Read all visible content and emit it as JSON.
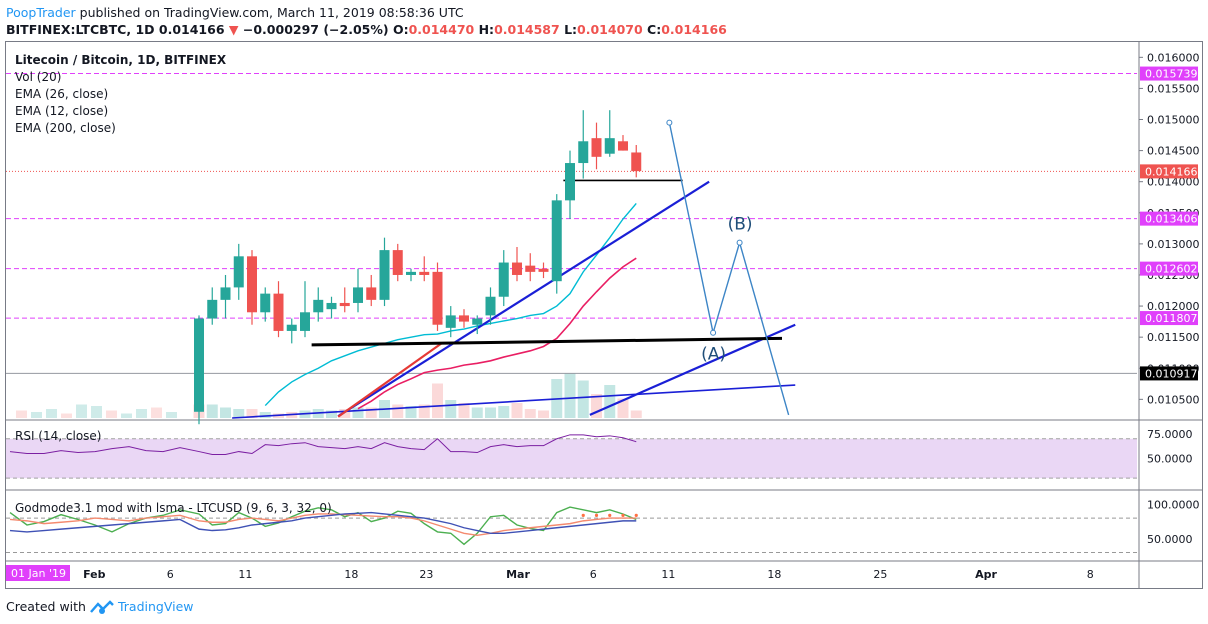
{
  "header": {
    "author": "PoopTrader",
    "published_text": "published on TradingView.com, March 11, 2019 08:58:36 UTC",
    "symbol_line": "BITFINEX:LTCBTC, 1D",
    "last_price": "0.014166",
    "change_arrow": "▼",
    "change": "−0.000297 (−2.05%)",
    "o_label": "O:",
    "o_value": "0.014470",
    "h_label": "H:",
    "h_value": "0.014587",
    "l_label": "L:",
    "l_value": "0.014070",
    "c_label": "C:",
    "c_value": "0.014166"
  },
  "legend": {
    "title": "Litecoin / Bitcoin, 1D, BITFINEX",
    "vol": "Vol (20)",
    "ema26": "EMA (26, close)",
    "ema12": "EMA (12, close)",
    "ema200": "EMA (200, close)",
    "rsi": "RSI (14, close)",
    "godmode": "Godmode3.1 mod with lsma - LTCUSD (9, 6, 3, 32, 0)"
  },
  "footer": {
    "created_with": "Created with",
    "brand": "TradingView"
  },
  "colors": {
    "up": "#26a69a",
    "down": "#ef5350",
    "ema_cyan": "#00bcd4",
    "ema_magenta": "#e91e63",
    "trend_blue": "#1a1fd6",
    "wave_blue": "#3d85c6",
    "magenta_level": "#e040fb",
    "rsi_line": "#7b1fa2",
    "rsi_band": "#ead7f5",
    "god_green": "#4caf50",
    "god_blue": "#3f51b5",
    "god_salmon": "#f48a6f"
  },
  "chart_data": [
    {
      "type": "candlestick",
      "title": "Litecoin / Bitcoin, 1D, BITFINEX",
      "ylim": [
        0.0102,
        0.01615
      ],
      "y_ticks": [
        "0.016000",
        "0.015500",
        "0.015000",
        "0.014500",
        "0.014000",
        "0.013500",
        "0.013000",
        "0.012500",
        "0.012000",
        "0.011500",
        "0.011000",
        "0.010500"
      ],
      "x_ticks": [
        "01 Jan '19",
        "Feb",
        "6",
        "11",
        "18",
        "23",
        "Mar",
        "6",
        "11",
        "18",
        "25",
        "Apr",
        "8"
      ],
      "price_labels": [
        {
          "value": 0.015739,
          "label": "0.015739",
          "style": "magenta"
        },
        {
          "value": 0.014166,
          "label": "0.014166",
          "style": "red"
        },
        {
          "value": 0.013406,
          "label": "0.013406",
          "style": "magenta"
        },
        {
          "value": 0.012602,
          "label": "0.012602",
          "style": "magenta"
        },
        {
          "value": 0.011807,
          "label": "0.011807",
          "style": "magenta"
        },
        {
          "value": 0.010917,
          "label": "0.010917",
          "style": "black"
        }
      ],
      "candles": [
        {
          "o": 0.0103,
          "h": 0.01185,
          "l": 0.0101,
          "c": 0.0118
        },
        {
          "o": 0.0118,
          "h": 0.0123,
          "l": 0.0117,
          "c": 0.0121
        },
        {
          "o": 0.0121,
          "h": 0.0125,
          "l": 0.0118,
          "c": 0.0123
        },
        {
          "o": 0.0123,
          "h": 0.013,
          "l": 0.0121,
          "c": 0.0128
        },
        {
          "o": 0.0128,
          "h": 0.0129,
          "l": 0.0117,
          "c": 0.0119
        },
        {
          "o": 0.0119,
          "h": 0.0123,
          "l": 0.01175,
          "c": 0.0122
        },
        {
          "o": 0.0122,
          "h": 0.0124,
          "l": 0.0115,
          "c": 0.0116
        },
        {
          "o": 0.0116,
          "h": 0.0118,
          "l": 0.0114,
          "c": 0.0117
        },
        {
          "o": 0.0116,
          "h": 0.0124,
          "l": 0.0115,
          "c": 0.0119
        },
        {
          "o": 0.0119,
          "h": 0.0123,
          "l": 0.01175,
          "c": 0.0121
        },
        {
          "o": 0.01195,
          "h": 0.01215,
          "l": 0.0118,
          "c": 0.01205
        },
        {
          "o": 0.01205,
          "h": 0.0123,
          "l": 0.0119,
          "c": 0.012
        },
        {
          "o": 0.01205,
          "h": 0.0126,
          "l": 0.0119,
          "c": 0.0123
        },
        {
          "o": 0.0123,
          "h": 0.0125,
          "l": 0.012,
          "c": 0.0121
        },
        {
          "o": 0.0121,
          "h": 0.0131,
          "l": 0.012,
          "c": 0.0129
        },
        {
          "o": 0.0129,
          "h": 0.013,
          "l": 0.0124,
          "c": 0.0125
        },
        {
          "o": 0.0125,
          "h": 0.0126,
          "l": 0.0124,
          "c": 0.01255
        },
        {
          "o": 0.01255,
          "h": 0.0128,
          "l": 0.0124,
          "c": 0.0125
        },
        {
          "o": 0.01255,
          "h": 0.0127,
          "l": 0.0116,
          "c": 0.0117
        },
        {
          "o": 0.01165,
          "h": 0.012,
          "l": 0.0115,
          "c": 0.01185
        },
        {
          "o": 0.01185,
          "h": 0.01195,
          "l": 0.01165,
          "c": 0.01175
        },
        {
          "o": 0.0117,
          "h": 0.01185,
          "l": 0.01155,
          "c": 0.0118
        },
        {
          "o": 0.01185,
          "h": 0.0123,
          "l": 0.0117,
          "c": 0.01215
        },
        {
          "o": 0.01215,
          "h": 0.0129,
          "l": 0.012,
          "c": 0.0127
        },
        {
          "o": 0.0127,
          "h": 0.01295,
          "l": 0.0124,
          "c": 0.0125
        },
        {
          "o": 0.01265,
          "h": 0.01285,
          "l": 0.0124,
          "c": 0.01255
        },
        {
          "o": 0.0126,
          "h": 0.0127,
          "l": 0.01245,
          "c": 0.01255
        },
        {
          "o": 0.0124,
          "h": 0.0138,
          "l": 0.0122,
          "c": 0.0137
        },
        {
          "o": 0.0137,
          "h": 0.0145,
          "l": 0.0134,
          "c": 0.0143
        },
        {
          "o": 0.0143,
          "h": 0.01515,
          "l": 0.01405,
          "c": 0.01465
        },
        {
          "o": 0.0147,
          "h": 0.01495,
          "l": 0.0142,
          "c": 0.0144
        },
        {
          "o": 0.01445,
          "h": 0.01515,
          "l": 0.0144,
          "c": 0.0147
        },
        {
          "o": 0.01465,
          "h": 0.01475,
          "l": 0.0145,
          "c": 0.0145
        },
        {
          "o": 0.01447,
          "h": 0.01459,
          "l": 0.01407,
          "c": 0.01417
        }
      ],
      "volume_up": [
        false,
        true,
        true,
        true,
        false,
        true,
        false,
        false,
        true,
        true,
        true,
        false,
        true,
        false,
        true,
        false,
        true,
        false,
        false,
        true,
        false,
        true,
        true,
        true,
        false,
        false,
        false,
        true,
        true,
        true,
        false,
        true,
        false,
        false
      ],
      "volume": [
        0.9,
        0.9,
        0.7,
        0.6,
        0.6,
        0.4,
        0.3,
        0.4,
        0.5,
        0.6,
        0.5,
        0.6,
        0.7,
        0.7,
        1.2,
        0.9,
        0.8,
        0.9,
        2.3,
        1.2,
        1.0,
        0.7,
        0.7,
        0.8,
        1.0,
        0.6,
        0.5,
        2.6,
        3.0,
        2.5,
        1.6,
        2.2,
        1.3,
        0.5
      ],
      "ema_cyan": [
        null,
        null,
        null,
        null,
        null,
        0.0104,
        0.01062,
        0.01078,
        0.0109,
        0.011,
        0.01112,
        0.0112,
        0.01128,
        0.01134,
        0.0114,
        0.01146,
        0.0115,
        0.01154,
        0.01155,
        0.0116,
        0.01163,
        0.01168,
        0.01172,
        0.01176,
        0.0118,
        0.01185,
        0.01188,
        0.012,
        0.0122,
        0.01255,
        0.01282,
        0.0131,
        0.0134,
        0.01365
      ],
      "ema_magenta": [
        null,
        null,
        null,
        null,
        null,
        null,
        null,
        null,
        null,
        null,
        null,
        null,
        0.01035,
        0.01047,
        0.01062,
        0.01074,
        0.01083,
        0.01093,
        0.01097,
        0.011,
        0.01105,
        0.01108,
        0.01112,
        0.01118,
        0.01123,
        0.01128,
        0.01135,
        0.01148,
        0.01172,
        0.012,
        0.01223,
        0.01245,
        0.01263,
        0.01277
      ],
      "level_lines": [
        0.015739,
        0.013406,
        0.012602,
        0.011807
      ],
      "horizontal_black": {
        "from_day": 27.5,
        "to_day": 36.5,
        "value": 0.01402
      },
      "neckline": {
        "from_day": 8.5,
        "value_from": 0.011375,
        "to_day": 44,
        "value_to": 0.01148
      },
      "trendline_upper": {
        "from_day": 10.5,
        "value_from": 0.01023,
        "to_day": 38.5,
        "value_to": 0.014
      },
      "trendline_lower": {
        "from_day": 29.5,
        "value_from": 0.01025,
        "to_day": 45,
        "value_to": 0.0117
      },
      "trendline_base": {
        "from_day": 2.5,
        "value_from": 0.0102,
        "to_day": 45,
        "value_to": 0.01073
      },
      "red_segment": {
        "from_day": 10.5,
        "value_from": 0.01022,
        "to_day": 18.3,
        "value_to": 0.0114
      },
      "wave": [
        {
          "day": 35.5,
          "value": 0.01495
        },
        {
          "day": 38.8,
          "value": 0.01157
        },
        {
          "day": 40.8,
          "value": 0.01302
        },
        {
          "day": 44.5,
          "value": 0.01025
        }
      ],
      "wave_labels": [
        {
          "text": "(A)",
          "day": 38.8,
          "value": 0.0113
        },
        {
          "text": "(B)",
          "day": 40.8,
          "value": 0.0132
        }
      ]
    },
    {
      "type": "line",
      "title": "RSI (14, close)",
      "y_ticks": [
        "75.0000",
        "50.0000"
      ],
      "band": [
        30,
        70
      ],
      "values": [
        57,
        54,
        54,
        57,
        55,
        64,
        63,
        65,
        66,
        62,
        61,
        60,
        62,
        60,
        66,
        62,
        60,
        59,
        70,
        57,
        57,
        56,
        62,
        64,
        62,
        63,
        63,
        70,
        74,
        74,
        72,
        73,
        71,
        67
      ]
    },
    {
      "type": "line",
      "title": "Godmode3.1 mod with lsma - LTCUSD (9, 6, 3, 32, 0)",
      "y_ticks": [
        "100.0000",
        "50.0000"
      ],
      "series": [
        {
          "values": [
            86,
            70,
            72,
            88,
            80,
            68,
            73,
            82,
            90,
            95,
            92,
            82,
            88,
            75,
            80,
            90,
            87,
            72,
            60,
            58,
            42,
            58,
            82,
            84,
            70,
            65,
            62,
            88,
            96,
            92,
            88,
            92,
            86,
            78
          ]
        },
        {
          "values": [
            76,
            74,
            74,
            78,
            80,
            78,
            76,
            80,
            84,
            86,
            86,
            85,
            84,
            83,
            82,
            82,
            80,
            76,
            70,
            64,
            58,
            55,
            58,
            62,
            64,
            66,
            68,
            70,
            72,
            76,
            78,
            80,
            80,
            80
          ]
        },
        {
          "values": [
            64,
            62,
            63,
            66,
            70,
            72,
            74,
            76,
            80,
            82,
            84,
            86,
            87,
            88,
            86,
            84,
            82,
            80,
            76,
            72,
            66,
            62,
            58,
            58,
            60,
            62,
            64,
            66,
            68,
            70,
            72,
            74,
            76,
            76
          ]
        }
      ]
    }
  ]
}
